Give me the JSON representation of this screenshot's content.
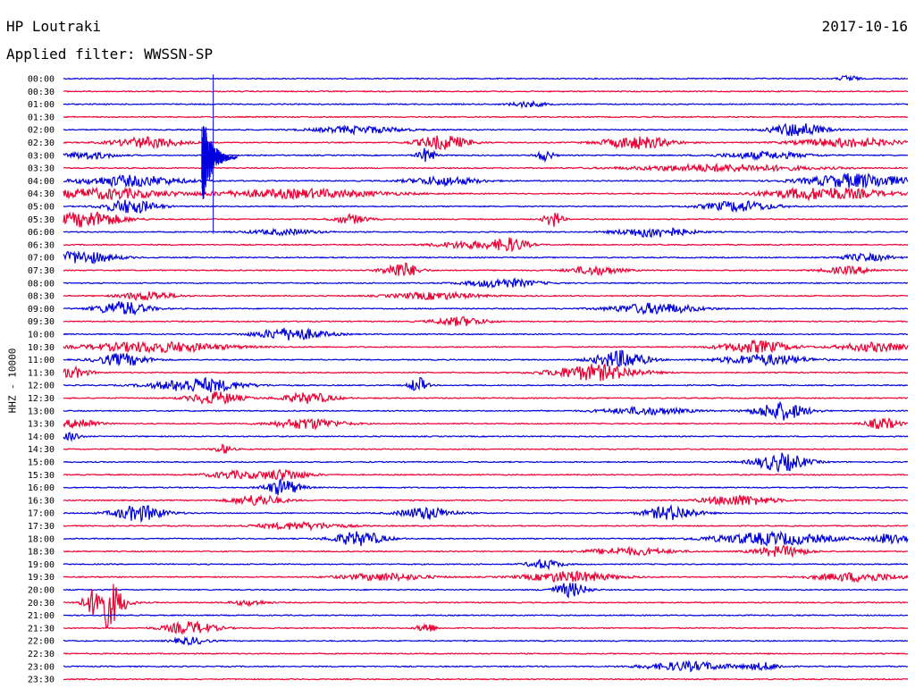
{
  "header": {
    "station": "HP Loutraki",
    "date": "2017-10-16",
    "filter": "Applied filter: WWSSN-SP"
  },
  "chart_data": {
    "type": "line",
    "ylabel": "HHZ - 10000",
    "row_labels": [
      "00:00",
      "00:30",
      "01:00",
      "01:30",
      "02:00",
      "02:30",
      "03:00",
      "03:30",
      "04:00",
      "04:30",
      "05:00",
      "05:30",
      "06:00",
      "06:30",
      "07:00",
      "07:30",
      "08:00",
      "08:30",
      "09:00",
      "09:30",
      "10:00",
      "10:30",
      "11:00",
      "11:30",
      "12:00",
      "12:30",
      "13:00",
      "13:30",
      "14:00",
      "14:30",
      "15:00",
      "15:30",
      "16:00",
      "16:30",
      "17:00",
      "17:30",
      "18:00",
      "18:30",
      "19:00",
      "19:30",
      "20:00",
      "20:30",
      "21:00",
      "21:30",
      "22:00",
      "22:30",
      "23:00",
      "23:30"
    ],
    "colors": [
      "#0000dd",
      "#ee0033"
    ],
    "grid": false,
    "events": [
      {
        "row": 0,
        "x": 0.93,
        "amp": 4,
        "w": 0.01
      },
      {
        "row": 2,
        "x": 0.55,
        "amp": 3,
        "w": 0.02
      },
      {
        "row": 4,
        "x": 0.35,
        "amp": 4,
        "w": 0.05
      },
      {
        "row": 4,
        "x": 0.87,
        "amp": 8,
        "w": 0.03
      },
      {
        "row": 5,
        "x": 0.1,
        "amp": 6,
        "w": 0.04
      },
      {
        "row": 5,
        "x": 0.45,
        "amp": 8,
        "w": 0.03
      },
      {
        "row": 5,
        "x": 0.68,
        "amp": 7,
        "w": 0.04
      },
      {
        "row": 5,
        "x": 0.93,
        "amp": 5,
        "w": 0.06
      },
      {
        "row": 6,
        "x": 0.03,
        "amp": 4,
        "w": 0.03
      },
      {
        "row": 6,
        "x": 0.43,
        "amp": 8,
        "w": 0.01
      },
      {
        "row": 6,
        "x": 0.57,
        "amp": 6,
        "w": 0.01
      },
      {
        "row": 6,
        "x": 0.83,
        "amp": 4,
        "w": 0.05
      },
      {
        "row": 7,
        "x": 0.78,
        "amp": 4,
        "w": 0.1
      },
      {
        "row": 8,
        "x": 0.08,
        "amp": 6,
        "w": 0.06
      },
      {
        "row": 8,
        "x": 0.45,
        "amp": 5,
        "w": 0.04
      },
      {
        "row": 8,
        "x": 0.94,
        "amp": 8,
        "w": 0.06
      },
      {
        "row": 9,
        "x": 0.05,
        "amp": 6,
        "w": 0.07
      },
      {
        "row": 9,
        "x": 0.28,
        "amp": 5,
        "w": 0.1
      },
      {
        "row": 9,
        "x": 0.9,
        "amp": 7,
        "w": 0.07
      },
      {
        "row": 10,
        "x": 0.08,
        "amp": 8,
        "w": 0.03
      },
      {
        "row": 10,
        "x": 0.8,
        "amp": 6,
        "w": 0.04
      },
      {
        "row": 11,
        "x": 0.03,
        "amp": 9,
        "w": 0.04
      },
      {
        "row": 11,
        "x": 0.34,
        "amp": 5,
        "w": 0.02
      },
      {
        "row": 11,
        "x": 0.58,
        "amp": 9,
        "w": 0.01
      },
      {
        "row": 12,
        "x": 0.26,
        "amp": 3,
        "w": 0.04
      },
      {
        "row": 12,
        "x": 0.7,
        "amp": 6,
        "w": 0.04
      },
      {
        "row": 13,
        "x": 0.48,
        "amp": 4,
        "w": 0.04
      },
      {
        "row": 13,
        "x": 0.53,
        "amp": 7,
        "w": 0.02
      },
      {
        "row": 14,
        "x": 0.02,
        "amp": 7,
        "w": 0.04
      },
      {
        "row": 14,
        "x": 0.95,
        "amp": 4,
        "w": 0.03
      },
      {
        "row": 15,
        "x": 0.4,
        "amp": 9,
        "w": 0.02
      },
      {
        "row": 15,
        "x": 0.63,
        "amp": 5,
        "w": 0.03
      },
      {
        "row": 15,
        "x": 0.93,
        "amp": 4,
        "w": 0.03
      },
      {
        "row": 16,
        "x": 0.52,
        "amp": 5,
        "w": 0.04
      },
      {
        "row": 17,
        "x": 0.1,
        "amp": 5,
        "w": 0.03
      },
      {
        "row": 17,
        "x": 0.44,
        "amp": 4,
        "w": 0.05
      },
      {
        "row": 18,
        "x": 0.07,
        "amp": 8,
        "w": 0.03
      },
      {
        "row": 18,
        "x": 0.7,
        "amp": 6,
        "w": 0.05
      },
      {
        "row": 19,
        "x": 0.47,
        "amp": 5,
        "w": 0.03
      },
      {
        "row": 20,
        "x": 0.27,
        "amp": 7,
        "w": 0.04
      },
      {
        "row": 21,
        "x": 0.11,
        "amp": 6,
        "w": 0.08
      },
      {
        "row": 21,
        "x": 0.82,
        "amp": 7,
        "w": 0.04
      },
      {
        "row": 21,
        "x": 0.96,
        "amp": 5,
        "w": 0.04
      },
      {
        "row": 22,
        "x": 0.07,
        "amp": 7,
        "w": 0.03
      },
      {
        "row": 22,
        "x": 0.66,
        "amp": 10,
        "w": 0.03
      },
      {
        "row": 22,
        "x": 0.83,
        "amp": 6,
        "w": 0.05
      },
      {
        "row": 23,
        "x": 0.01,
        "amp": 6,
        "w": 0.02
      },
      {
        "row": 23,
        "x": 0.63,
        "amp": 9,
        "w": 0.05
      },
      {
        "row": 24,
        "x": 0.16,
        "amp": 8,
        "w": 0.05
      },
      {
        "row": 24,
        "x": 0.42,
        "amp": 9,
        "w": 0.01
      },
      {
        "row": 25,
        "x": 0.18,
        "amp": 7,
        "w": 0.03
      },
      {
        "row": 25,
        "x": 0.29,
        "amp": 6,
        "w": 0.03
      },
      {
        "row": 26,
        "x": 0.69,
        "amp": 4,
        "w": 0.05
      },
      {
        "row": 26,
        "x": 0.85,
        "amp": 10,
        "w": 0.03
      },
      {
        "row": 27,
        "x": 0.02,
        "amp": 6,
        "w": 0.02
      },
      {
        "row": 27,
        "x": 0.29,
        "amp": 6,
        "w": 0.04
      },
      {
        "row": 27,
        "x": 0.97,
        "amp": 6,
        "w": 0.02
      },
      {
        "row": 28,
        "x": 0.01,
        "amp": 5,
        "w": 0.01
      },
      {
        "row": 29,
        "x": 0.19,
        "amp": 5,
        "w": 0.01
      },
      {
        "row": 30,
        "x": 0.85,
        "amp": 10,
        "w": 0.03
      },
      {
        "row": 31,
        "x": 0.2,
        "amp": 4,
        "w": 0.03
      },
      {
        "row": 31,
        "x": 0.26,
        "amp": 6,
        "w": 0.03
      },
      {
        "row": 32,
        "x": 0.26,
        "amp": 9,
        "w": 0.02
      },
      {
        "row": 33,
        "x": 0.23,
        "amp": 6,
        "w": 0.03
      },
      {
        "row": 33,
        "x": 0.8,
        "amp": 6,
        "w": 0.04
      },
      {
        "row": 34,
        "x": 0.09,
        "amp": 9,
        "w": 0.03
      },
      {
        "row": 34,
        "x": 0.43,
        "amp": 7,
        "w": 0.03
      },
      {
        "row": 34,
        "x": 0.72,
        "amp": 8,
        "w": 0.03
      },
      {
        "row": 35,
        "x": 0.28,
        "amp": 4,
        "w": 0.05
      },
      {
        "row": 36,
        "x": 0.35,
        "amp": 8,
        "w": 0.03
      },
      {
        "row": 36,
        "x": 0.84,
        "amp": 7,
        "w": 0.07
      },
      {
        "row": 36,
        "x": 0.98,
        "amp": 6,
        "w": 0.02
      },
      {
        "row": 37,
        "x": 0.67,
        "amp": 4,
        "w": 0.05
      },
      {
        "row": 37,
        "x": 0.85,
        "amp": 6,
        "w": 0.03
      },
      {
        "row": 38,
        "x": 0.57,
        "amp": 5,
        "w": 0.02
      },
      {
        "row": 39,
        "x": 0.38,
        "amp": 4,
        "w": 0.05
      },
      {
        "row": 39,
        "x": 0.6,
        "amp": 6,
        "w": 0.05
      },
      {
        "row": 39,
        "x": 0.94,
        "amp": 5,
        "w": 0.05
      },
      {
        "row": 40,
        "x": 0.6,
        "amp": 8,
        "w": 0.02
      },
      {
        "row": 41,
        "x": 0.05,
        "amp": 28,
        "w": 0.02
      },
      {
        "row": 41,
        "x": 0.22,
        "amp": 3,
        "w": 0.02
      },
      {
        "row": 43,
        "x": 0.15,
        "amp": 7,
        "w": 0.03
      },
      {
        "row": 43,
        "x": 0.43,
        "amp": 6,
        "w": 0.01
      },
      {
        "row": 44,
        "x": 0.15,
        "amp": 4,
        "w": 0.02
      },
      {
        "row": 46,
        "x": 0.74,
        "amp": 5,
        "w": 0.05
      },
      {
        "row": 46,
        "x": 0.83,
        "amp": 4,
        "w": 0.02
      }
    ],
    "quake": {
      "row": 4,
      "x": 0.17,
      "span_rows": 8,
      "amp": 60
    }
  }
}
